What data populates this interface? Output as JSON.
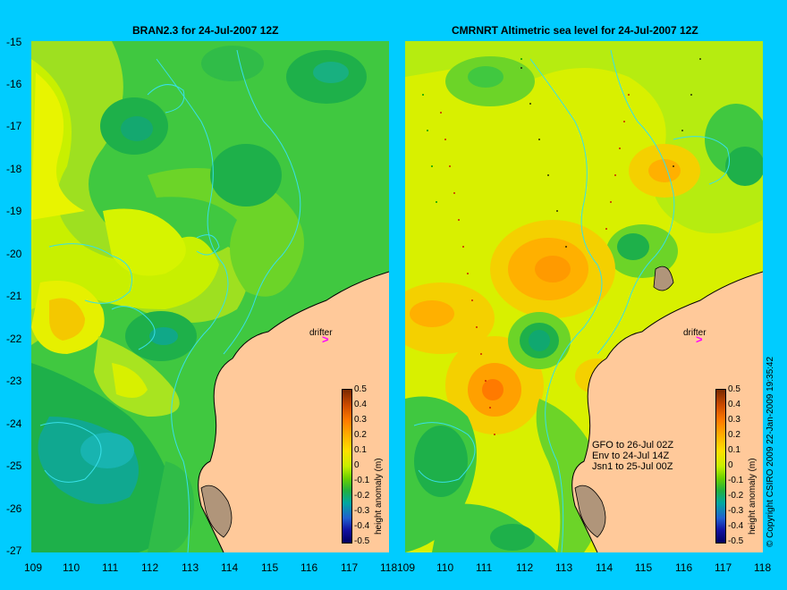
{
  "left_panel": {
    "title": "BRAN2.3  for 24-Jul-2007 12Z",
    "drifter_label": "drifter",
    "drifter_arrow": ">"
  },
  "right_panel": {
    "title": "CMRNRT Altimetric sea level  for 24-Jul-2007 12Z",
    "drifter_label": "drifter",
    "drifter_arrow": ">",
    "satellite_lines": [
      "GFO to 26-Jul 02Z",
      "Env to 24-Jul 14Z",
      "Jsn1 to 25-Jul 00Z"
    ]
  },
  "y_ticks": [
    "-15",
    "-16",
    "-17",
    "-18",
    "-19",
    "-20",
    "-21",
    "-22",
    "-23",
    "-24",
    "-25",
    "-26",
    "-27"
  ],
  "x_ticks": [
    "109",
    "110",
    "111",
    "112",
    "113",
    "114",
    "115",
    "116",
    "117",
    "118"
  ],
  "colorbar": {
    "label": "height anomaly (m)",
    "ticks": [
      "0.5",
      "0.4",
      "0.3",
      "0.2",
      "0.1",
      "0",
      "-0.1",
      "-0.2",
      "-0.3",
      "-0.4",
      "-0.5"
    ],
    "colors": [
      "#7a2a00",
      "#cc4a00",
      "#ff7a00",
      "#ffb000",
      "#ffe000",
      "#c8f000",
      "#6ad000",
      "#20b040",
      "#00a8a0",
      "#2060d0",
      "#1010a0",
      "#000060"
    ]
  },
  "copyright": "© Copyright CSIRO 2009   22-Jan-2009 19:35:42",
  "colors": {
    "land": "#FFC99A",
    "background": "#00CCFF",
    "contour": "#38E0E8",
    "drifter": "#FF00FF"
  }
}
